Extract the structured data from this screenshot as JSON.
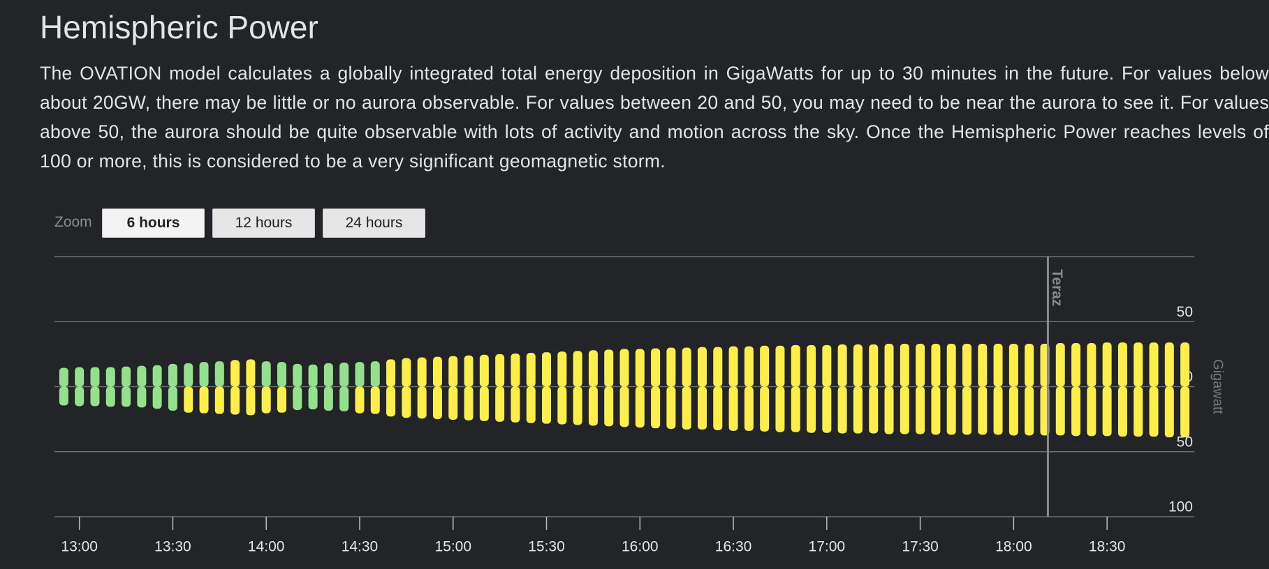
{
  "header": {
    "title": "Hemispheric Power",
    "text": "The OVATION model calculates a globally integrated total energy deposition in GigaWatts for up to 30 minutes in the future. For values below about 20GW, there may be little or no aurora observable. For values between 20 and 50, you may need to be near the aurora to see it. For values above 50, the aurora should be quite observable with lots of activity and motion across the sky. Once the Hemispheric Power reaches levels of 100 or more, this is considered to be a very significant geomagnetic storm."
  },
  "zoom": {
    "label": "Zoom",
    "buttons": [
      "6 hours",
      "12 hours",
      "24 hours"
    ],
    "selected": 0
  },
  "chart_data": {
    "type": "bar",
    "y_label": "Gigawatt",
    "x": [
      775,
      780,
      785,
      790,
      795,
      800,
      805,
      810,
      815,
      820,
      825,
      830,
      835,
      840,
      845,
      850,
      855,
      860,
      865,
      870,
      875,
      880,
      885,
      890,
      895,
      900,
      905,
      910,
      915,
      920,
      925,
      930,
      935,
      940,
      945,
      950,
      955,
      960,
      965,
      970,
      975,
      980,
      985,
      990,
      995,
      1000,
      1005,
      1010,
      1015,
      1020,
      1025,
      1030,
      1035,
      1040,
      1045,
      1050,
      1055,
      1060,
      1065,
      1070,
      1075,
      1080,
      1085,
      1090,
      1095,
      1100,
      1105,
      1110,
      1115,
      1120,
      1125,
      1130,
      1135
    ],
    "series": [
      {
        "values": [
          14.5,
          15,
          15,
          15,
          15.5,
          16,
          16.5,
          17.5,
          18,
          19,
          19.5,
          20.5,
          21,
          19.5,
          19,
          17.5,
          17,
          18,
          18.5,
          19,
          19.5,
          21,
          22,
          22.5,
          23,
          23.5,
          24,
          24.5,
          25,
          25.5,
          26,
          26.5,
          27,
          27.5,
          28,
          28.5,
          29,
          29,
          29.5,
          30,
          30,
          30.5,
          30.5,
          31,
          31,
          31.5,
          31.5,
          32,
          32,
          32,
          32.5,
          32.5,
          32.5,
          33,
          33,
          33,
          33,
          33,
          33,
          33,
          33,
          33,
          33,
          33,
          33.5,
          33.5,
          33.5,
          34,
          34,
          34,
          34,
          34,
          34
        ]
      },
      {
        "values": [
          -14.5,
          -15,
          -15,
          -15.5,
          -15.5,
          -16,
          -17,
          -18.5,
          -20,
          -20.5,
          -21,
          -21.5,
          -22,
          -20.5,
          -20,
          -18,
          -17.5,
          -18.5,
          -19,
          -20.5,
          -21,
          -23,
          -24,
          -24.5,
          -25,
          -25.5,
          -26,
          -26.5,
          -27,
          -27.5,
          -28,
          -28.5,
          -29,
          -29.5,
          -30,
          -30.5,
          -31,
          -31.5,
          -32,
          -32.5,
          -33,
          -33,
          -33.5,
          -34,
          -34,
          -34.5,
          -35,
          -35,
          -35.5,
          -35.5,
          -36,
          -36,
          -36,
          -36.5,
          -36.5,
          -36.5,
          -37,
          -37,
          -37,
          -37,
          -37,
          -37.5,
          -37.5,
          -37.5,
          -37.5,
          -38,
          -38,
          -38,
          -38.5,
          -38.5,
          -38.5,
          -39,
          -39
        ]
      }
    ],
    "color": "#fcee4b",
    "low_color": "#95e08c",
    "low_threshold": 20,
    "xlim": [
      772,
      1138
    ],
    "xticks": [
      {
        "value": 780,
        "label": "13:00"
      },
      {
        "value": 810,
        "label": "13:30"
      },
      {
        "value": 840,
        "label": "14:00"
      },
      {
        "value": 870,
        "label": "14:30"
      },
      {
        "value": 900,
        "label": "15:00"
      },
      {
        "value": 930,
        "label": "15:30"
      },
      {
        "value": 960,
        "label": "16:00"
      },
      {
        "value": 990,
        "label": "16:30"
      },
      {
        "value": 1020,
        "label": "17:00"
      },
      {
        "value": 1050,
        "label": "17:30"
      },
      {
        "value": 1080,
        "label": "18:00"
      },
      {
        "value": 1110,
        "label": "18:30"
      }
    ],
    "ylim": [
      -100,
      100
    ],
    "yticks": [
      {
        "value": -100,
        "label": "100"
      },
      {
        "value": -50,
        "label": "50"
      },
      0,
      50
    ],
    "grid": true,
    "annotations": [
      {
        "text": "Teraz",
        "x": 1091
      }
    ]
  }
}
